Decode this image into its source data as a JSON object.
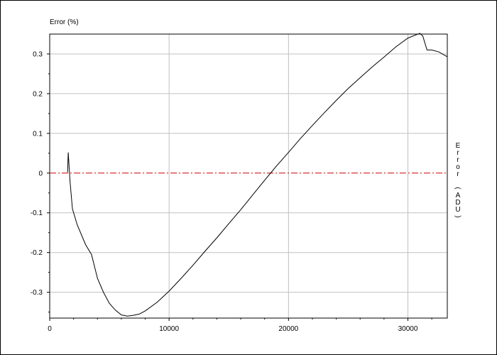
{
  "chart_data": {
    "type": "line",
    "title": "",
    "ylabel": "Error (%)",
    "y2label": "Error (ADU)",
    "xlabel": "",
    "xlim": [
      0,
      33300
    ],
    "ylim": [
      -0.365,
      0.35
    ],
    "x_ticks": [
      0,
      10000,
      20000,
      30000
    ],
    "y_ticks": [
      -0.3,
      -0.2,
      -0.1,
      0,
      0.1,
      0.2,
      0.3
    ],
    "grid": true,
    "colors": {
      "curve": "#000000",
      "zero_line": "#cc0000",
      "grid": "#c0c0c0"
    },
    "reference_line": {
      "name": "",
      "y": 0
    },
    "series": [
      {
        "name": "",
        "x": [
          1500,
          1550,
          1700,
          1900,
          2300,
          3000,
          3500,
          4000,
          4500,
          5000,
          5500,
          6000,
          6500,
          7000,
          7500,
          8000,
          9000,
          10000,
          11000,
          12000,
          13000,
          14000,
          15000,
          16000,
          17000,
          18000,
          19000,
          20000,
          21000,
          22000,
          23000,
          24000,
          25000,
          26000,
          27000,
          28000,
          29000,
          30000,
          31000,
          31250,
          31600,
          32000,
          32600,
          33300
        ],
        "y": [
          0.002,
          0.052,
          -0.02,
          -0.09,
          -0.13,
          -0.18,
          -0.205,
          -0.265,
          -0.3,
          -0.328,
          -0.345,
          -0.357,
          -0.36,
          -0.358,
          -0.355,
          -0.347,
          -0.325,
          -0.297,
          -0.265,
          -0.232,
          -0.197,
          -0.163,
          -0.127,
          -0.092,
          -0.055,
          -0.018,
          0.018,
          0.052,
          0.087,
          0.12,
          0.152,
          0.183,
          0.213,
          0.24,
          0.267,
          0.292,
          0.318,
          0.34,
          0.352,
          0.345,
          0.31,
          0.31,
          0.305,
          0.293
        ]
      }
    ]
  }
}
